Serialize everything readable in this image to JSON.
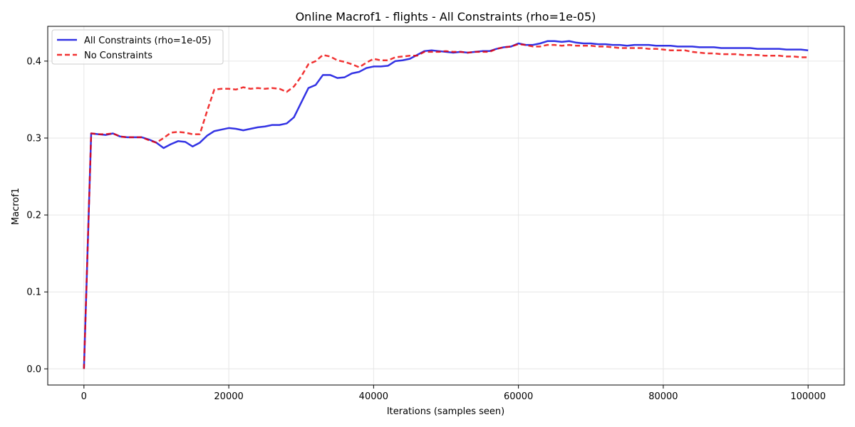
{
  "chart_data": {
    "type": "line",
    "title": "Online Macrof1 - flights - All Constraints (rho=1e-05)",
    "xlabel": "Iterations (samples seen)",
    "ylabel": "Macrof1",
    "xlim": [
      -5000,
      105000
    ],
    "ylim": [
      -0.021,
      0.4452
    ],
    "xticks": [
      0,
      20000,
      40000,
      60000,
      80000,
      100000
    ],
    "yticks": [
      0.0,
      0.1,
      0.2,
      0.3,
      0.4
    ],
    "xtick_labels": [
      "0",
      "20000",
      "40000",
      "60000",
      "80000",
      "100000"
    ],
    "ytick_labels": [
      "0.0",
      "0.1",
      "0.2",
      "0.3",
      "0.4"
    ],
    "grid": true,
    "legend_position": "top-left",
    "series": [
      {
        "name": "All Constraints (rho=1e-05)",
        "color": "#0000dd",
        "style": "solid",
        "x": [
          0,
          1000,
          2000,
          3000,
          4000,
          5000,
          6000,
          7000,
          8000,
          9000,
          10000,
          11000,
          12000,
          13000,
          14000,
          15000,
          16000,
          17000,
          18000,
          19000,
          20000,
          21000,
          22000,
          23000,
          24000,
          25000,
          26000,
          27000,
          28000,
          29000,
          30000,
          31000,
          32000,
          33000,
          34000,
          35000,
          36000,
          37000,
          38000,
          39000,
          40000,
          41000,
          42000,
          43000,
          44000,
          45000,
          46000,
          47000,
          48000,
          49000,
          50000,
          51000,
          52000,
          53000,
          54000,
          55000,
          56000,
          57000,
          58000,
          59000,
          60000,
          61000,
          62000,
          63000,
          64000,
          65000,
          66000,
          67000,
          68000,
          69000,
          70000,
          71000,
          72000,
          73000,
          74000,
          75000,
          76000,
          77000,
          78000,
          79000,
          80000,
          81000,
          82000,
          83000,
          84000,
          85000,
          86000,
          87000,
          88000,
          89000,
          90000,
          91000,
          92000,
          93000,
          94000,
          95000,
          96000,
          97000,
          98000,
          99000,
          100000
        ],
        "y": [
          0.0,
          0.306,
          0.305,
          0.304,
          0.306,
          0.302,
          0.301,
          0.301,
          0.301,
          0.298,
          0.294,
          0.287,
          0.292,
          0.296,
          0.295,
          0.289,
          0.294,
          0.303,
          0.309,
          0.311,
          0.313,
          0.312,
          0.31,
          0.312,
          0.314,
          0.315,
          0.317,
          0.317,
          0.319,
          0.327,
          0.346,
          0.365,
          0.369,
          0.382,
          0.382,
          0.378,
          0.379,
          0.384,
          0.386,
          0.391,
          0.393,
          0.393,
          0.394,
          0.4,
          0.401,
          0.403,
          0.408,
          0.413,
          0.414,
          0.413,
          0.412,
          0.411,
          0.412,
          0.411,
          0.412,
          0.413,
          0.413,
          0.416,
          0.418,
          0.419,
          0.423,
          0.421,
          0.421,
          0.423,
          0.426,
          0.426,
          0.425,
          0.426,
          0.424,
          0.423,
          0.423,
          0.422,
          0.422,
          0.421,
          0.421,
          0.42,
          0.421,
          0.421,
          0.421,
          0.42,
          0.42,
          0.42,
          0.419,
          0.419,
          0.419,
          0.418,
          0.418,
          0.418,
          0.417,
          0.417,
          0.417,
          0.417,
          0.417,
          0.416,
          0.416,
          0.416,
          0.416,
          0.415,
          0.415,
          0.415,
          0.414
        ]
      },
      {
        "name": "No Constraints",
        "color": "#ee0000",
        "style": "dashed",
        "x": [
          0,
          1000,
          2000,
          3000,
          4000,
          5000,
          6000,
          7000,
          8000,
          9000,
          10000,
          11000,
          12000,
          13000,
          14000,
          15000,
          16000,
          17000,
          18000,
          19000,
          20000,
          21000,
          22000,
          23000,
          24000,
          25000,
          26000,
          27000,
          28000,
          29000,
          30000,
          31000,
          32000,
          33000,
          34000,
          35000,
          36000,
          37000,
          38000,
          39000,
          40000,
          41000,
          42000,
          43000,
          44000,
          45000,
          46000,
          47000,
          48000,
          49000,
          50000,
          51000,
          52000,
          53000,
          54000,
          55000,
          56000,
          57000,
          58000,
          59000,
          60000,
          61000,
          62000,
          63000,
          64000,
          65000,
          66000,
          67000,
          68000,
          69000,
          70000,
          71000,
          72000,
          73000,
          74000,
          75000,
          76000,
          77000,
          78000,
          79000,
          80000,
          81000,
          82000,
          83000,
          84000,
          85000,
          86000,
          87000,
          88000,
          89000,
          90000,
          91000,
          92000,
          93000,
          94000,
          95000,
          96000,
          97000,
          98000,
          99000,
          100000
        ],
        "y": [
          0.0,
          0.306,
          0.305,
          0.305,
          0.306,
          0.302,
          0.301,
          0.301,
          0.301,
          0.297,
          0.294,
          0.3,
          0.307,
          0.308,
          0.307,
          0.305,
          0.305,
          0.335,
          0.363,
          0.364,
          0.364,
          0.363,
          0.366,
          0.364,
          0.365,
          0.364,
          0.365,
          0.364,
          0.36,
          0.367,
          0.38,
          0.396,
          0.4,
          0.408,
          0.406,
          0.401,
          0.399,
          0.396,
          0.392,
          0.398,
          0.403,
          0.401,
          0.401,
          0.405,
          0.406,
          0.407,
          0.407,
          0.412,
          0.412,
          0.412,
          0.413,
          0.412,
          0.412,
          0.411,
          0.412,
          0.412,
          0.412,
          0.416,
          0.418,
          0.419,
          0.422,
          0.421,
          0.419,
          0.419,
          0.421,
          0.421,
          0.42,
          0.421,
          0.42,
          0.42,
          0.42,
          0.419,
          0.419,
          0.418,
          0.417,
          0.417,
          0.417,
          0.417,
          0.416,
          0.416,
          0.415,
          0.414,
          0.414,
          0.414,
          0.412,
          0.411,
          0.41,
          0.41,
          0.409,
          0.409,
          0.409,
          0.408,
          0.408,
          0.408,
          0.407,
          0.407,
          0.407,
          0.406,
          0.406,
          0.405,
          0.405
        ]
      }
    ]
  }
}
